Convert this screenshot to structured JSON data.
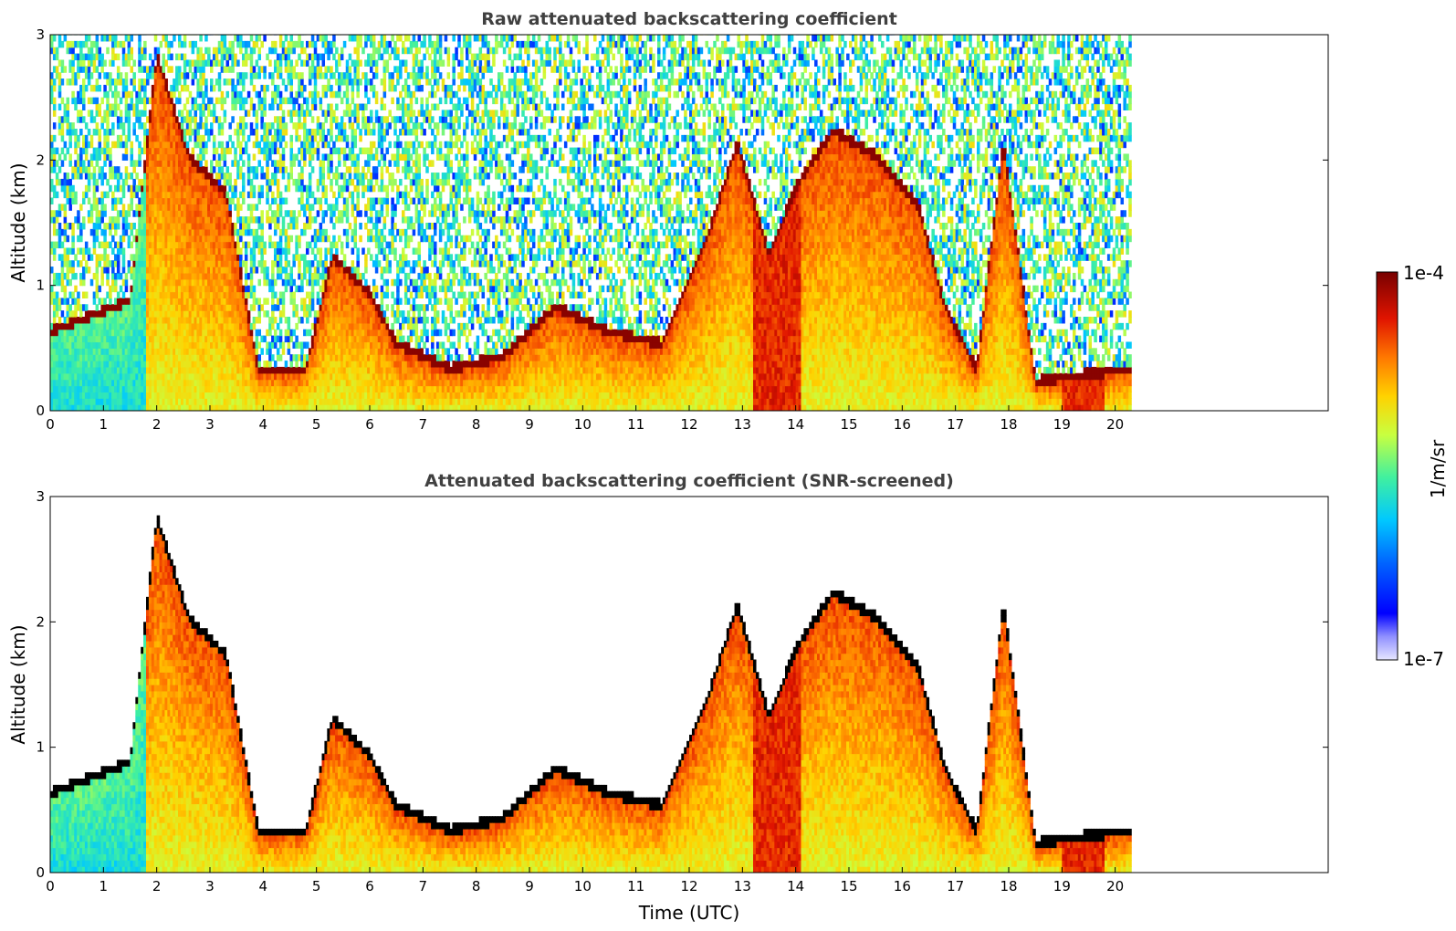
{
  "colors": {
    "colormap_stops": [
      "#e6e6ff",
      "#0000ff",
      "#00c8ff",
      "#40f0a0",
      "#c8ff40",
      "#ffd200",
      "#ff7800",
      "#e01400",
      "#780000"
    ],
    "screened_overlay": "#000000",
    "title_color": "#404040"
  },
  "chart_data": [
    {
      "type": "heatmap",
      "title": "Raw attenuated backscattering coefficient",
      "xlabel": "",
      "ylabel": "Altitude (km)",
      "xlim": [
        0,
        24
      ],
      "ylim": [
        0,
        3
      ],
      "x_ticks": [
        0,
        1,
        2,
        3,
        4,
        5,
        6,
        7,
        8,
        9,
        10,
        11,
        12,
        13,
        14,
        15,
        16,
        17,
        18,
        19,
        20
      ],
      "y_ticks": [
        0,
        1,
        2,
        3
      ],
      "data_x_range": [
        0,
        20.3
      ],
      "layer_heights_km": [
        {
          "t": 0,
          "z": 0.6
        },
        {
          "t": 1.5,
          "z": 0.85
        },
        {
          "t": 2.0,
          "z": 2.8
        },
        {
          "t": 2.6,
          "z": 2.0
        },
        {
          "t": 3.3,
          "z": 1.7
        },
        {
          "t": 3.9,
          "z": 0.3
        },
        {
          "t": 4.8,
          "z": 0.3
        },
        {
          "t": 5.3,
          "z": 1.2
        },
        {
          "t": 6.0,
          "z": 0.9
        },
        {
          "t": 6.5,
          "z": 0.5
        },
        {
          "t": 7.5,
          "z": 0.3
        },
        {
          "t": 8.5,
          "z": 0.4
        },
        {
          "t": 9.5,
          "z": 0.8
        },
        {
          "t": 10.5,
          "z": 0.6
        },
        {
          "t": 11.5,
          "z": 0.5
        },
        {
          "t": 12.3,
          "z": 1.3
        },
        {
          "t": 12.9,
          "z": 2.1
        },
        {
          "t": 13.5,
          "z": 1.2
        },
        {
          "t": 14.0,
          "z": 1.75
        },
        {
          "t": 14.7,
          "z": 2.2
        },
        {
          "t": 15.5,
          "z": 2.0
        },
        {
          "t": 16.3,
          "z": 1.6
        },
        {
          "t": 16.8,
          "z": 0.8
        },
        {
          "t": 17.4,
          "z": 0.3
        },
        {
          "t": 17.9,
          "z": 2.1
        },
        {
          "t": 18.5,
          "z": 0.2
        },
        {
          "t": 19.3,
          "z": 0.25
        },
        {
          "t": 20.3,
          "z": 0.3
        }
      ]
    },
    {
      "type": "heatmap",
      "title": "Attenuated backscattering coefficient (SNR-screened)",
      "xlabel": "Time (UTC)",
      "ylabel": "Altitude (km)",
      "xlim": [
        0,
        24
      ],
      "ylim": [
        0,
        3
      ],
      "x_ticks": [
        0,
        1,
        2,
        3,
        4,
        5,
        6,
        7,
        8,
        9,
        10,
        11,
        12,
        13,
        14,
        15,
        16,
        17,
        18,
        19,
        20
      ],
      "y_ticks": [
        0,
        1,
        2,
        3
      ],
      "data_x_range": [
        0,
        20.3
      ]
    }
  ],
  "colorbar": {
    "label": "1/m/sr",
    "max_label": "1e-4",
    "min_label": "1e-7",
    "scale": "log",
    "range": [
      1e-07,
      0.0001
    ]
  }
}
